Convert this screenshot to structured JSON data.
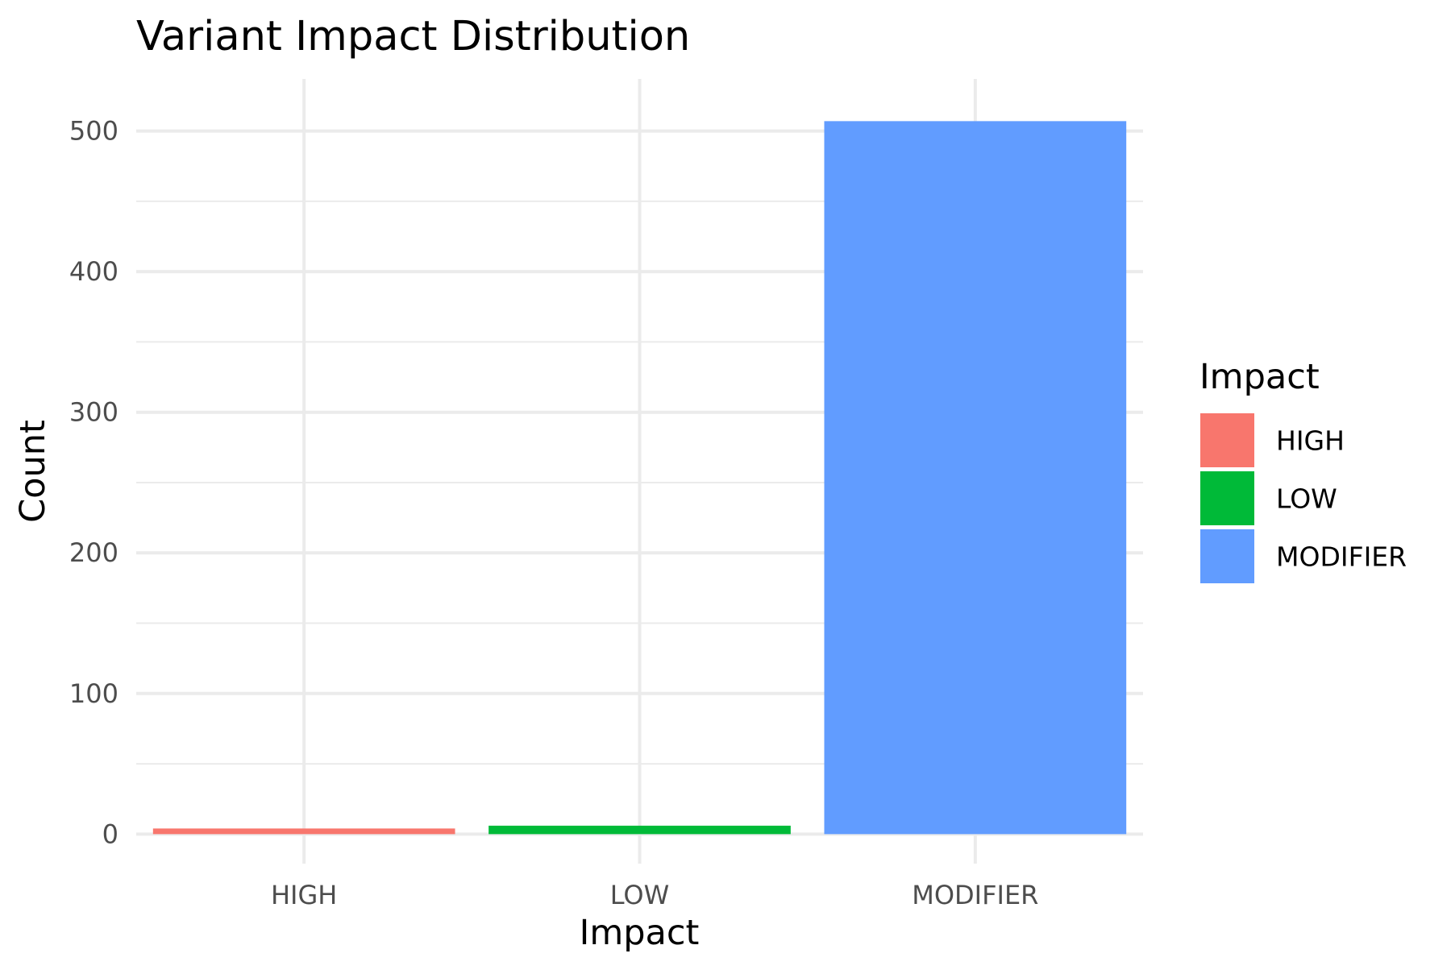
{
  "chart_data": {
    "type": "bar",
    "title": "Variant Impact Distribution",
    "xlabel": "Impact",
    "ylabel": "Count",
    "categories": [
      "HIGH",
      "LOW",
      "MODIFIER"
    ],
    "values": [
      4,
      6,
      507
    ],
    "colors": [
      "#F8766D",
      "#00BA38",
      "#619CFF"
    ],
    "ylim": [
      -21,
      537
    ],
    "yticks": [
      0,
      100,
      200,
      300,
      400,
      500
    ],
    "ytick_labels": [
      "0",
      "100",
      "200",
      "300",
      "400",
      "500"
    ],
    "grid": true,
    "legend": {
      "title": "Impact",
      "placement": "right",
      "entries": [
        "HIGH",
        "LOW",
        "MODIFIER"
      ]
    }
  }
}
